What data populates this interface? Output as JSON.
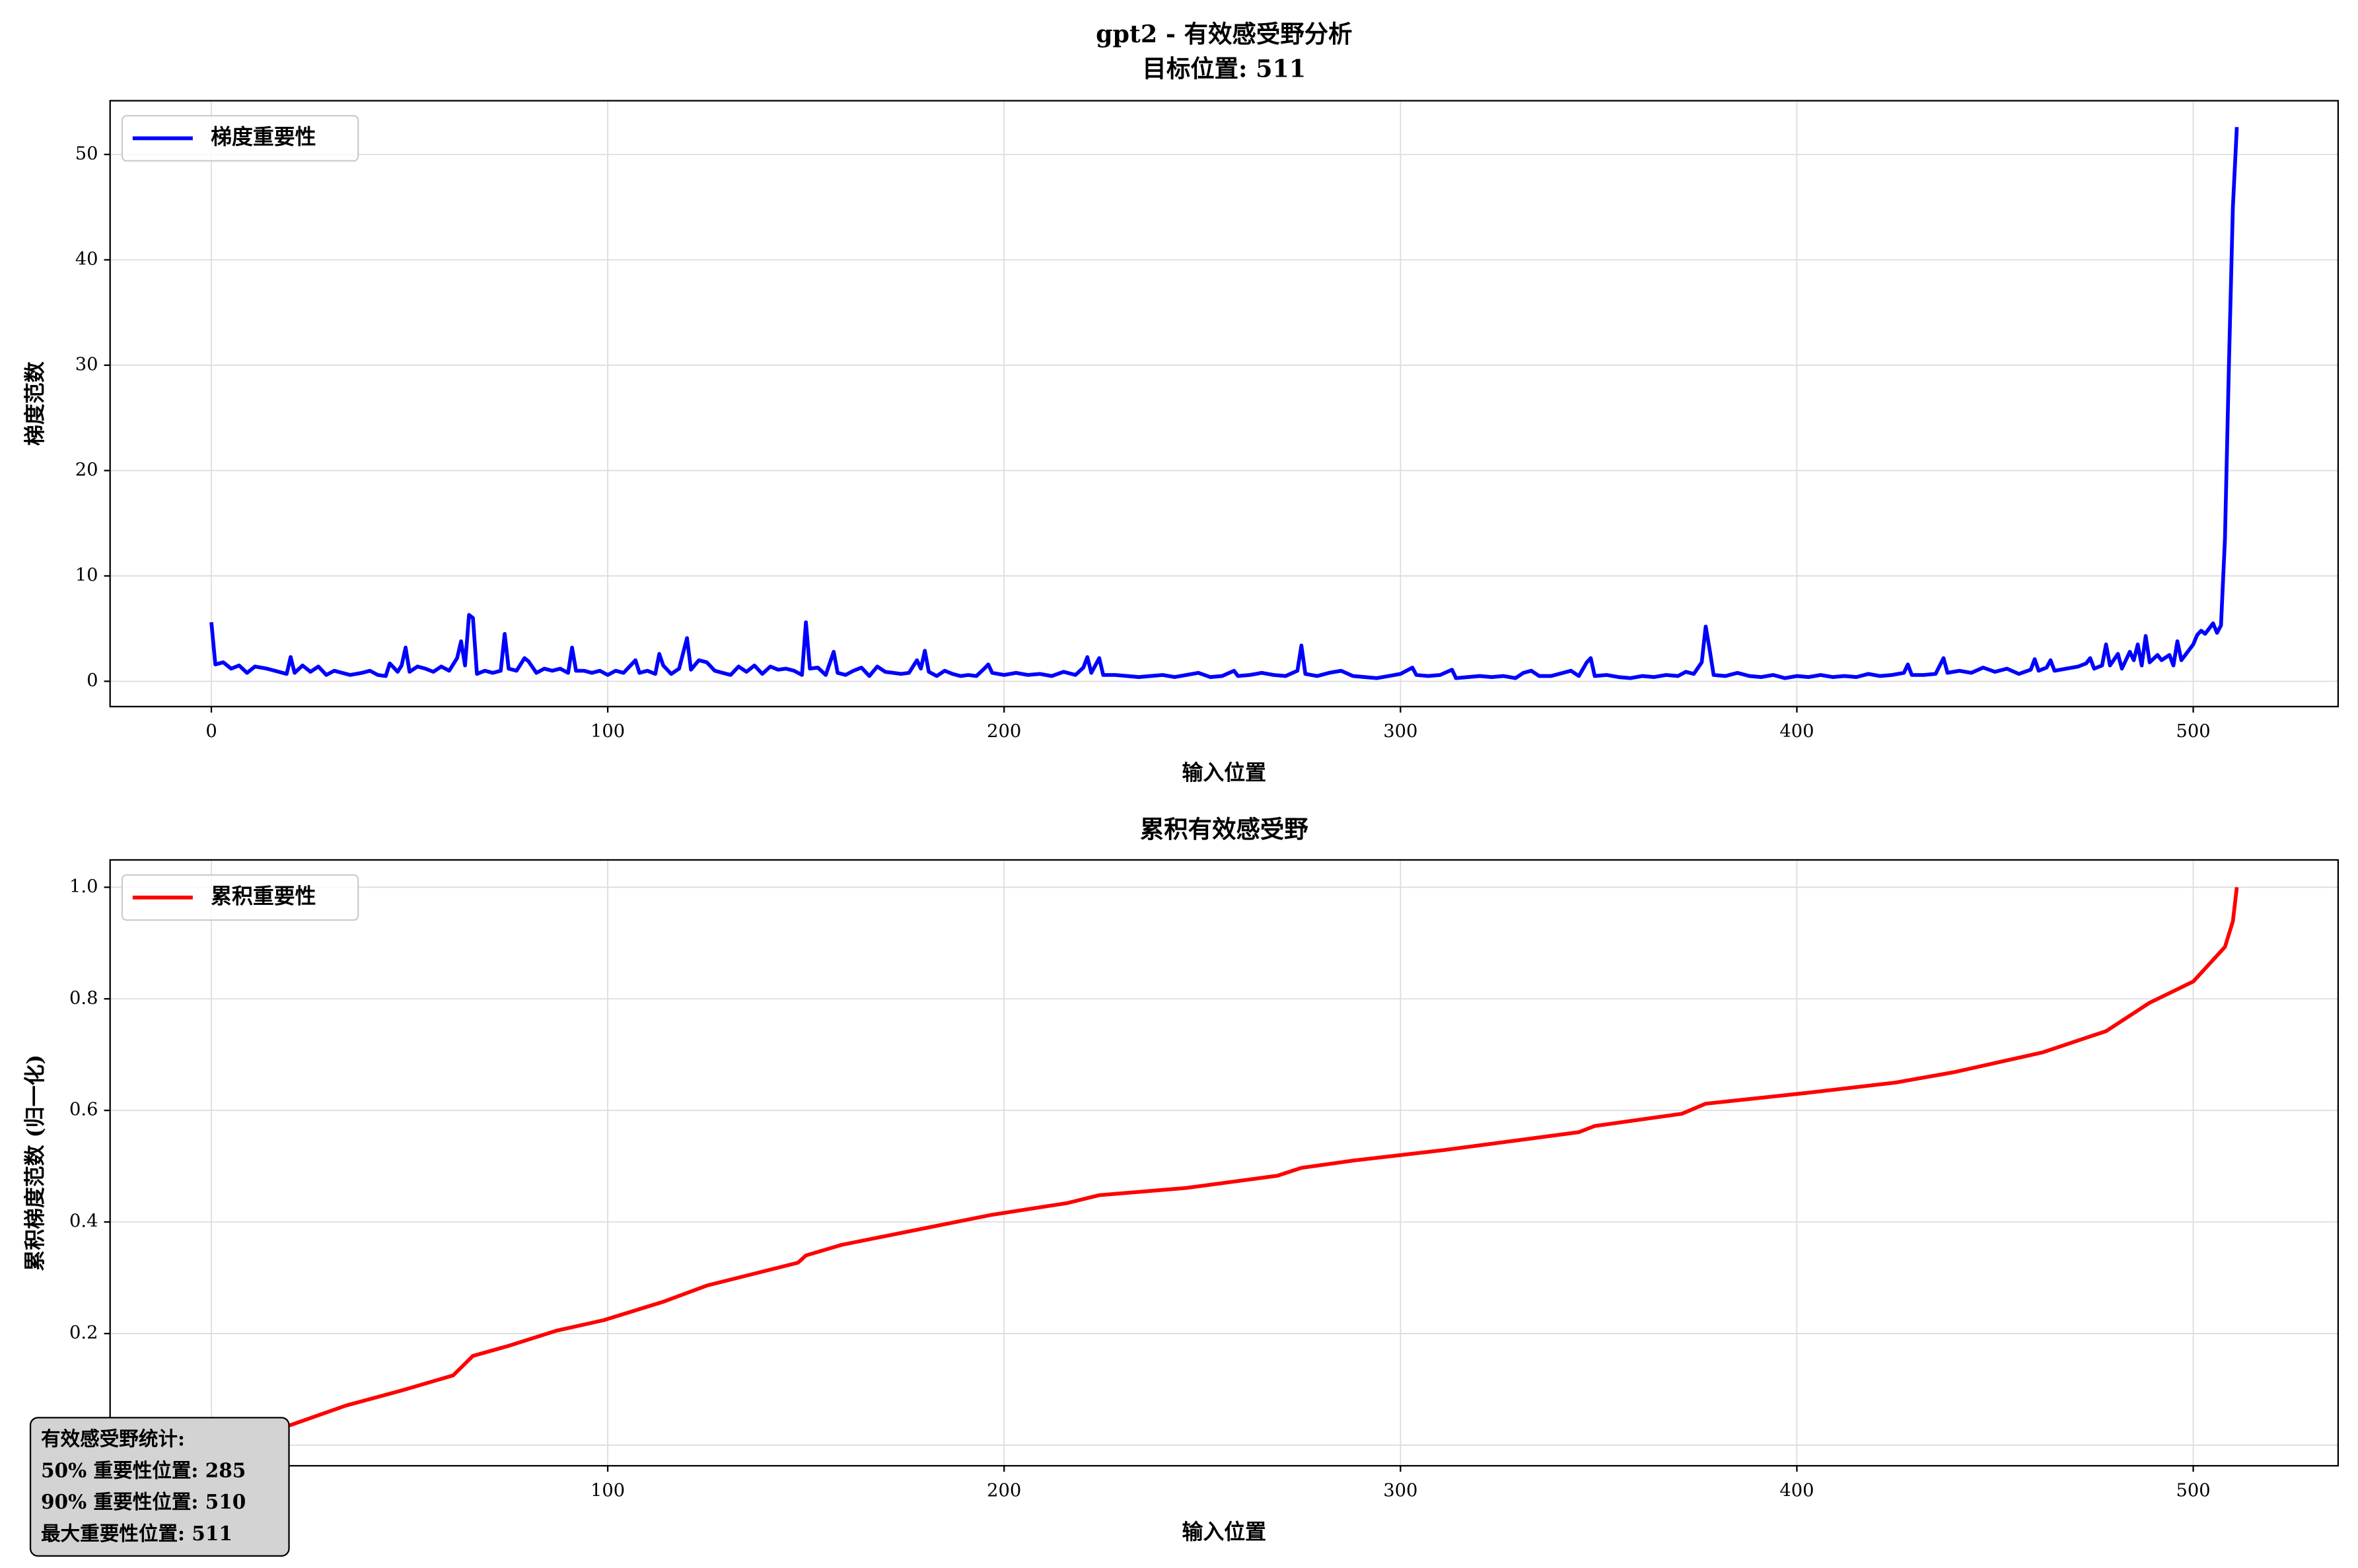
{
  "chart_data": [
    {
      "type": "line",
      "title": "gpt2 - 有效感受野分析",
      "subtitle": "目标位置: 511",
      "x_label": "输入位置",
      "y_label": "梯度范数",
      "legend": "upper left",
      "grid": true,
      "xlim": [
        -25.55,
        536.55
      ],
      "ylim": [
        -2.4,
        55.1
      ],
      "xticks": [
        0,
        100,
        200,
        300,
        400,
        500
      ],
      "yticks": [
        0,
        10,
        20,
        30,
        40,
        50
      ],
      "x": [
        0,
        1,
        3,
        5,
        7,
        9,
        11,
        14,
        17,
        19,
        20,
        21,
        23,
        25,
        27,
        29,
        31,
        33,
        35,
        38,
        40,
        42,
        44,
        45,
        47,
        48,
        49,
        50,
        52,
        54,
        56,
        58,
        60,
        62,
        63,
        64,
        65,
        66,
        67,
        69,
        71,
        73,
        74,
        75,
        77,
        79,
        80,
        82,
        84,
        86,
        88,
        90,
        91,
        92,
        94,
        96,
        98,
        100,
        102,
        104,
        107,
        108,
        110,
        112,
        113,
        114,
        116,
        118,
        120,
        121,
        123,
        125,
        127,
        129,
        131,
        133,
        135,
        137,
        139,
        141,
        143,
        145,
        147,
        149,
        150,
        151,
        153,
        155,
        157,
        158,
        160,
        162,
        164,
        166,
        168,
        170,
        172,
        174,
        176,
        178,
        179,
        180,
        181,
        183,
        185,
        187,
        189,
        191,
        193,
        195,
        196,
        197,
        200,
        203,
        206,
        209,
        212,
        215,
        218,
        220,
        221,
        222,
        224,
        225,
        228,
        231,
        234,
        237,
        240,
        243,
        246,
        249,
        252,
        255,
        258,
        259,
        262,
        265,
        268,
        271,
        274,
        275,
        276,
        279,
        282,
        285,
        288,
        291,
        294,
        297,
        300,
        303,
        304,
        307,
        310,
        313,
        314,
        317,
        320,
        323,
        326,
        329,
        331,
        333,
        335,
        338,
        341,
        343,
        345,
        347,
        348,
        349,
        352,
        355,
        358,
        361,
        364,
        367,
        370,
        372,
        374,
        376,
        377,
        378,
        379,
        382,
        385,
        388,
        391,
        394,
        397,
        400,
        403,
        406,
        409,
        412,
        415,
        418,
        421,
        424,
        427,
        428,
        429,
        432,
        435,
        437,
        438,
        441,
        444,
        447,
        450,
        453,
        456,
        459,
        460,
        461,
        463,
        464,
        465,
        468,
        471,
        473,
        474,
        475,
        477,
        478,
        479,
        481,
        482,
        484,
        485,
        486,
        487,
        488,
        489,
        491,
        492,
        494,
        495,
        496,
        497,
        498,
        500,
        501,
        502,
        503,
        504,
        505,
        506,
        507,
        508,
        509,
        510,
        511
      ],
      "series": [
        {
          "name": "梯度重要性",
          "color": "#0000ff",
          "values": [
            5.6,
            1.6,
            1.8,
            1.2,
            1.5,
            0.8,
            1.4,
            1.2,
            0.9,
            0.7,
            2.3,
            0.8,
            1.5,
            0.9,
            1.4,
            0.6,
            1.0,
            0.8,
            0.6,
            0.8,
            1.0,
            0.6,
            0.5,
            1.7,
            0.9,
            1.5,
            3.2,
            0.9,
            1.4,
            1.2,
            0.9,
            1.4,
            1.0,
            2.2,
            3.8,
            1.5,
            6.3,
            6.0,
            0.7,
            1.0,
            0.8,
            1.0,
            4.5,
            1.2,
            1.0,
            2.2,
            1.9,
            0.8,
            1.2,
            1.0,
            1.2,
            0.8,
            3.2,
            1.0,
            1.0,
            0.8,
            1.0,
            0.6,
            1.0,
            0.8,
            2.0,
            0.8,
            1.0,
            0.7,
            2.6,
            1.5,
            0.7,
            1.2,
            4.1,
            1.1,
            2.0,
            1.8,
            1.0,
            0.8,
            0.6,
            1.4,
            0.9,
            1.5,
            0.7,
            1.4,
            1.1,
            1.2,
            1.0,
            0.6,
            5.6,
            1.2,
            1.3,
            0.6,
            2.8,
            0.8,
            0.6,
            1.0,
            1.3,
            0.5,
            1.4,
            0.9,
            0.8,
            0.7,
            0.8,
            2.0,
            1.2,
            2.9,
            0.9,
            0.5,
            1.0,
            0.7,
            0.5,
            0.6,
            0.5,
            1.2,
            1.6,
            0.8,
            0.6,
            0.8,
            0.6,
            0.7,
            0.5,
            0.9,
            0.6,
            1.3,
            2.3,
            0.8,
            2.2,
            0.6,
            0.6,
            0.5,
            0.4,
            0.5,
            0.6,
            0.4,
            0.6,
            0.8,
            0.4,
            0.5,
            1.0,
            0.5,
            0.6,
            0.8,
            0.6,
            0.5,
            1.0,
            3.4,
            0.7,
            0.5,
            0.8,
            1.0,
            0.5,
            0.4,
            0.3,
            0.5,
            0.7,
            1.3,
            0.6,
            0.5,
            0.6,
            1.1,
            0.3,
            0.4,
            0.5,
            0.4,
            0.5,
            0.3,
            0.8,
            1.0,
            0.5,
            0.5,
            0.8,
            1.0,
            0.5,
            1.8,
            2.2,
            0.5,
            0.6,
            0.4,
            0.3,
            0.5,
            0.4,
            0.6,
            0.5,
            0.9,
            0.7,
            1.8,
            5.2,
            3.0,
            0.6,
            0.5,
            0.8,
            0.5,
            0.4,
            0.6,
            0.3,
            0.5,
            0.4,
            0.6,
            0.4,
            0.5,
            0.4,
            0.7,
            0.5,
            0.6,
            0.8,
            1.6,
            0.6,
            0.6,
            0.7,
            2.2,
            0.8,
            1.0,
            0.8,
            1.3,
            0.9,
            1.2,
            0.7,
            1.1,
            2.1,
            1.0,
            1.3,
            2.0,
            1.0,
            1.2,
            1.4,
            1.7,
            2.2,
            1.2,
            1.5,
            3.5,
            1.5,
            2.6,
            1.2,
            2.8,
            2.0,
            3.5,
            1.5,
            4.3,
            1.8,
            2.5,
            2.0,
            2.5,
            1.5,
            3.8,
            2.0,
            2.5,
            3.5,
            4.4,
            4.8,
            4.5,
            5.0,
            5.5,
            4.6,
            5.3,
            13.5,
            30.0,
            45.0,
            52.6
          ]
        }
      ]
    },
    {
      "type": "line",
      "title": "累积有效感受野",
      "x_label": "输入位置",
      "y_label": "累积梯度范数 (归一化)",
      "legend": "upper left",
      "grid": true,
      "xlim": [
        -25.55,
        536.55
      ],
      "ylim": [
        -0.037,
        1.049
      ],
      "xticks": [
        0,
        100,
        200,
        300,
        400,
        500
      ],
      "yticks": [
        {
          "value": 0,
          "label": "0.0"
        },
        {
          "value": 0.2,
          "label": "0.2"
        },
        {
          "value": 0.4,
          "label": "0.4"
        },
        {
          "value": 0.6,
          "label": "0.6"
        },
        {
          "value": 0.8,
          "label": "0.8"
        },
        {
          "value": 1.0,
          "label": "1.0"
        }
      ],
      "x": [
        0,
        10,
        20,
        34,
        48,
        61,
        64,
        66,
        75,
        87,
        99,
        114,
        125,
        148,
        150,
        159,
        178,
        197,
        216,
        224,
        246,
        269,
        275,
        288,
        311,
        345,
        349,
        371,
        377,
        402,
        425,
        440,
        462,
        478,
        489,
        500,
        508,
        510,
        511
      ],
      "series": [
        {
          "name": "累积重要性",
          "color": "#ff0000",
          "values": [
            0.011,
            0.025,
            0.036,
            0.071,
            0.098,
            0.125,
            0.146,
            0.16,
            0.178,
            0.205,
            0.224,
            0.257,
            0.286,
            0.327,
            0.34,
            0.359,
            0.386,
            0.413,
            0.434,
            0.448,
            0.461,
            0.483,
            0.497,
            0.51,
            0.529,
            0.561,
            0.572,
            0.594,
            0.612,
            0.631,
            0.65,
            0.669,
            0.704,
            0.742,
            0.793,
            0.831,
            0.893,
            0.939,
            1.0
          ]
        }
      ],
      "annotation": [
        "有效感受野统计:",
        "50% 重要性位置: 285",
        "90% 重要性位置: 510",
        "最大重要性位置: 511"
      ]
    }
  ]
}
